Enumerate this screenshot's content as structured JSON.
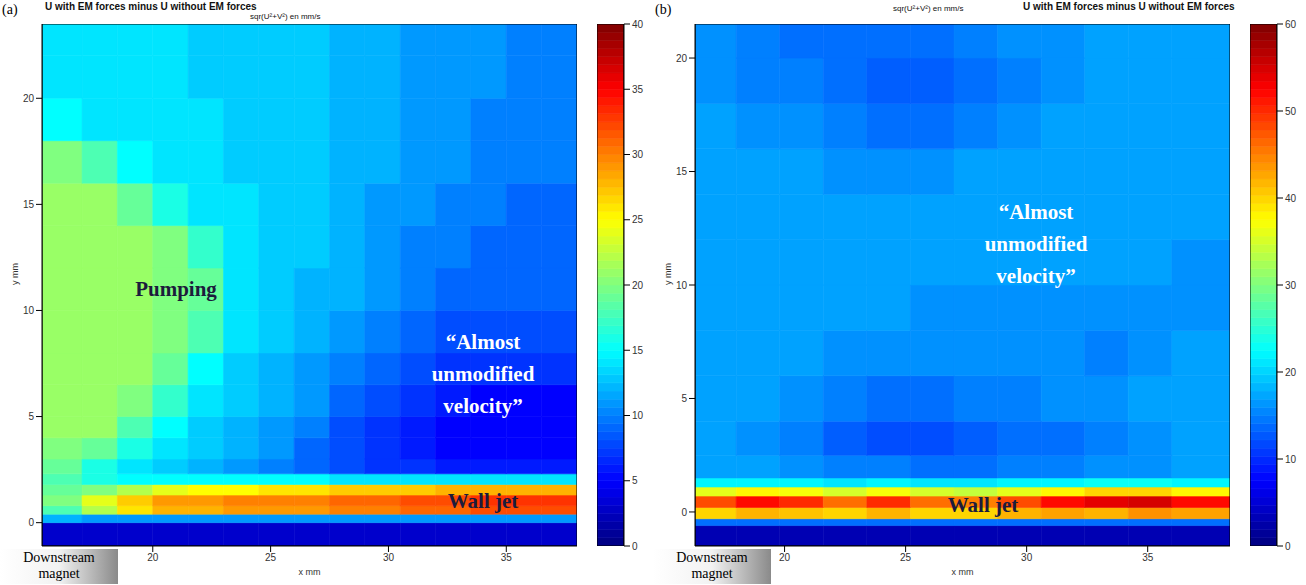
{
  "chart_data": [
    {
      "type": "heatmap",
      "panel_label": "(a)",
      "title": "U with EM forces minus U without EM forces",
      "subtitle": "sqr(U²+V²) en mm/s",
      "x_label": "x mm",
      "y_label": "y mm",
      "annotations": [
        "Pumping",
        "“Almost unmodified velocity”",
        "Wall jet"
      ],
      "magnet_label": "Downstream magnet",
      "xlim": [
        15.3,
        38
      ],
      "ylim": [
        -1.1,
        23.5
      ],
      "xticks": [
        20,
        25,
        30,
        35
      ],
      "yticks": [
        0,
        5,
        10,
        15,
        20
      ],
      "x_edges": [
        15.3,
        17,
        18.5,
        20,
        21.5,
        23,
        24.5,
        26,
        27.5,
        29,
        30.5,
        32,
        33.5,
        35,
        36.5,
        38
      ],
      "y_edges": [
        -1.1,
        0,
        0.4,
        0.8,
        1.3,
        1.8,
        2.3,
        3,
        4,
        5,
        6.5,
        8,
        10,
        12,
        14,
        16,
        18,
        20,
        22,
        23.5
      ],
      "cells": [
        [
          3,
          3,
          3,
          3,
          3,
          3,
          3,
          3,
          3,
          3,
          3,
          3,
          3,
          3,
          3
        ],
        [
          12,
          11,
          11,
          11,
          11,
          11,
          11,
          11,
          11,
          11,
          11,
          11,
          11,
          11,
          11
        ],
        [
          18,
          22,
          26,
          28,
          28,
          29,
          29,
          29,
          30,
          30,
          31,
          31,
          32,
          32,
          32
        ],
        [
          20,
          24,
          27,
          29,
          29,
          30,
          30,
          30,
          31,
          31,
          32,
          32,
          33,
          33,
          33
        ],
        [
          19,
          20,
          22,
          24,
          25,
          25,
          26,
          26,
          27,
          27,
          27,
          28,
          28,
          28,
          28
        ],
        [
          18,
          16,
          15,
          15,
          15,
          15,
          15,
          15,
          14,
          14,
          14,
          14,
          14,
          14,
          14
        ],
        [
          19,
          16,
          14,
          13,
          12,
          11,
          10,
          9,
          8,
          7,
          7,
          6,
          6,
          6,
          6
        ],
        [
          20,
          19,
          16,
          14,
          13,
          12,
          11,
          9,
          8,
          7,
          6,
          5,
          5,
          5,
          5
        ],
        [
          21,
          21,
          18,
          15,
          13,
          12,
          11,
          10,
          8,
          7,
          6,
          5,
          5,
          5,
          5
        ],
        [
          21,
          21,
          20,
          17,
          14,
          13,
          12,
          11,
          9,
          8,
          7,
          6,
          5,
          5,
          5
        ],
        [
          21,
          21,
          21,
          19,
          15,
          13,
          12,
          11,
          10,
          9,
          8,
          7,
          7,
          7,
          7
        ],
        [
          21,
          21,
          21,
          20,
          18,
          14,
          13,
          12,
          11,
          10,
          9,
          8,
          8,
          8,
          8
        ],
        [
          21,
          21,
          21,
          20,
          19,
          14,
          13,
          12,
          12,
          11,
          10,
          9,
          9,
          9,
          9
        ],
        [
          21,
          21,
          21,
          20,
          17,
          14,
          13,
          13,
          12,
          11,
          10,
          10,
          9,
          9,
          9
        ],
        [
          21,
          21,
          19,
          16,
          14,
          14,
          13,
          13,
          12,
          11,
          11,
          10,
          10,
          9,
          9
        ],
        [
          20,
          18,
          15,
          14,
          14,
          13,
          13,
          13,
          12,
          12,
          11,
          11,
          10,
          10,
          10
        ],
        [
          15,
          14,
          14,
          14,
          14,
          13,
          13,
          13,
          12,
          12,
          11,
          11,
          10,
          10,
          10
        ],
        [
          14,
          14,
          14,
          14,
          13,
          13,
          13,
          13,
          12,
          12,
          11,
          11,
          11,
          10,
          10
        ],
        [
          14,
          14,
          14,
          14,
          13,
          13,
          13,
          13,
          12,
          12,
          11,
          11,
          11,
          10,
          10
        ]
      ],
      "colorbar_range": [
        0,
        40
      ],
      "colorbar_ticks": [
        0,
        5,
        10,
        15,
        20,
        25,
        30,
        35,
        40
      ]
    },
    {
      "type": "heatmap",
      "panel_label": "(b)",
      "title": "U with EM forces minus U without EM forces",
      "subtitle": "sqr(U²+V²) en mm/s",
      "x_label": "x mm",
      "y_label": "y mm",
      "annotations": [
        "“Almost unmodified velocity”",
        "Wall jet"
      ],
      "magnet_label": "Downstream magnet",
      "xlim": [
        16.3,
        38.4
      ],
      "ylim": [
        -1.5,
        21.5
      ],
      "xticks": [
        20,
        25,
        30,
        35
      ],
      "yticks": [
        0,
        5,
        10,
        15,
        20
      ],
      "x_edges": [
        16.3,
        18,
        19.8,
        21.6,
        23.4,
        25.2,
        27,
        28.8,
        30.6,
        32.4,
        34.2,
        36,
        38.4
      ],
      "y_edges": [
        -1.5,
        -0.6,
        -0.3,
        0.2,
        0.7,
        1.1,
        1.5,
        2.5,
        4,
        6,
        8,
        10,
        12,
        14,
        16,
        18,
        20,
        21.5
      ],
      "cells": [
        [
          3,
          3,
          3,
          3,
          3,
          3,
          3,
          3,
          3,
          3,
          3,
          3
        ],
        [
          14,
          14,
          14,
          14,
          14,
          14,
          14,
          14,
          14,
          14,
          14,
          14
        ],
        [
          40,
          42,
          41,
          40,
          42,
          40,
          40,
          42,
          43,
          42,
          44,
          43
        ],
        [
          48,
          52,
          50,
          46,
          50,
          46,
          45,
          48,
          52,
          54,
          55,
          52
        ],
        [
          36,
          38,
          37,
          35,
          37,
          35,
          34,
          36,
          38,
          40,
          40,
          38
        ],
        [
          22,
          22,
          22,
          21,
          22,
          21,
          21,
          22,
          22,
          23,
          23,
          22
        ],
        [
          17,
          17,
          16,
          15,
          15,
          14,
          14,
          15,
          15,
          16,
          16,
          17
        ],
        [
          17,
          16,
          15,
          13,
          12,
          12,
          13,
          14,
          14,
          15,
          16,
          17
        ],
        [
          17,
          17,
          16,
          15,
          14,
          14,
          15,
          15,
          16,
          16,
          17,
          17
        ],
        [
          17,
          17,
          17,
          16,
          16,
          16,
          16,
          16,
          16,
          15,
          16,
          17
        ],
        [
          17,
          17,
          17,
          17,
          17,
          16,
          16,
          16,
          16,
          16,
          16,
          16
        ],
        [
          17,
          17,
          17,
          17,
          17,
          17,
          17,
          17,
          17,
          17,
          17,
          16
        ],
        [
          17,
          17,
          17,
          17,
          17,
          17,
          17,
          17,
          17,
          17,
          17,
          17
        ],
        [
          17,
          17,
          17,
          16,
          16,
          16,
          17,
          17,
          17,
          17,
          17,
          17
        ],
        [
          17,
          16,
          16,
          15,
          14,
          14,
          15,
          16,
          17,
          17,
          17,
          17
        ],
        [
          16,
          15,
          15,
          14,
          13,
          13,
          14,
          15,
          16,
          17,
          17,
          17
        ],
        [
          16,
          15,
          14,
          14,
          14,
          14,
          15,
          16,
          16,
          17,
          17,
          17
        ]
      ],
      "colorbar_range": [
        0,
        60
      ],
      "colorbar_ticks": [
        0,
        10,
        20,
        30,
        40,
        50,
        60
      ]
    }
  ]
}
